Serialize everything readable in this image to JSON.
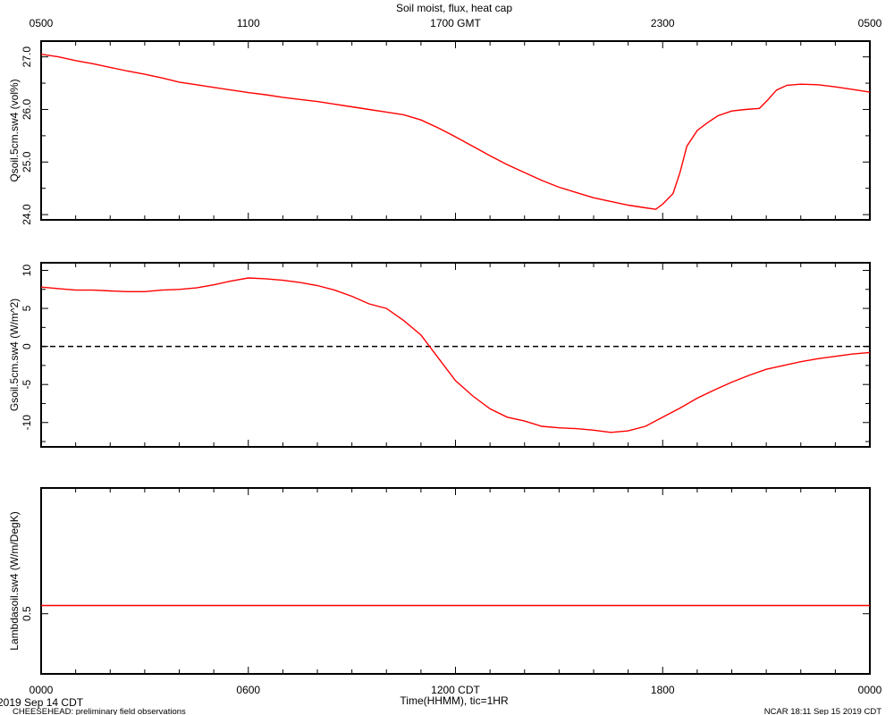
{
  "title": "Soil moist, flux, heat cap",
  "top_axis": {
    "ticks": [
      "0500",
      "1100",
      "1700 GMT",
      "2300",
      "0500"
    ]
  },
  "bottom_axis": {
    "ticks": [
      "0000",
      "0600",
      "1200 CDT",
      "1800",
      "0000"
    ],
    "title": "Time(HHMM), tic=1HR"
  },
  "footer": {
    "date": "2019 Sep 14 CDT",
    "project": "CHEESEHEAD: preliminary field observations",
    "credit": "NCAR 18:11 Sep 15 2019 CDT"
  },
  "colors": {
    "series": "#ff0000",
    "frame": "#000000",
    "zero_line": "#000000"
  },
  "chart_data": [
    {
      "type": "line",
      "ylabel": "Qsoil.5cm.sw4 (vol%)",
      "xlim": [
        0,
        24
      ],
      "ylim": [
        23.9,
        27.3
      ],
      "yticks": [
        24.0,
        25.0,
        26.0,
        27.0
      ],
      "ytick_labels": [
        "24.0",
        "25.0",
        "26.0",
        "27.0"
      ],
      "series": [
        {
          "x": [
            0,
            0.5,
            1,
            1.5,
            2,
            2.5,
            3,
            3.5,
            4,
            4.5,
            5,
            5.5,
            6,
            6.5,
            7,
            7.5,
            8,
            8.5,
            9,
            9.5,
            10,
            10.5,
            11,
            11.5,
            12,
            12.5,
            13,
            13.5,
            14,
            14.5,
            15,
            15.5,
            16,
            16.5,
            17,
            17.5,
            17.8,
            18,
            18.3,
            18.5,
            18.7,
            19,
            19.3,
            19.6,
            20,
            20.4,
            20.8,
            21,
            21.3,
            21.6,
            22,
            22.5,
            23,
            23.5,
            24
          ],
          "y": [
            27.05,
            27.0,
            26.93,
            26.87,
            26.8,
            26.73,
            26.67,
            26.6,
            26.52,
            26.47,
            26.42,
            26.37,
            26.32,
            26.28,
            26.23,
            26.19,
            26.15,
            26.1,
            26.05,
            26.0,
            25.95,
            25.9,
            25.8,
            25.65,
            25.48,
            25.3,
            25.12,
            24.95,
            24.8,
            24.65,
            24.52,
            24.42,
            24.32,
            24.25,
            24.18,
            24.13,
            24.1,
            24.2,
            24.4,
            24.8,
            25.3,
            25.6,
            25.75,
            25.88,
            25.97,
            26.0,
            26.02,
            26.15,
            26.37,
            26.46,
            26.48,
            26.47,
            26.43,
            26.38,
            26.33
          ]
        }
      ]
    },
    {
      "type": "line",
      "ylabel": "Gsoil.5cm.sw4 (W/m^2)",
      "xlim": [
        0,
        24
      ],
      "ylim": [
        -13.2,
        11
      ],
      "yticks": [
        -10,
        -5,
        0,
        5,
        10
      ],
      "ytick_labels": [
        "-10",
        "-5",
        "0",
        "5",
        "10"
      ],
      "zero_line": 0,
      "series": [
        {
          "x": [
            0,
            0.5,
            1,
            1.5,
            2,
            2.5,
            3,
            3.5,
            4,
            4.5,
            5,
            5.5,
            6,
            6.5,
            7,
            7.5,
            8,
            8.5,
            9,
            9.5,
            10,
            10.5,
            11,
            11.5,
            12,
            12.5,
            13,
            13.5,
            14,
            14.5,
            15,
            15.5,
            16,
            16.5,
            17,
            17.5,
            18,
            18.5,
            19,
            19.5,
            20,
            20.5,
            21,
            21.5,
            22,
            22.5,
            23,
            23.5,
            24
          ],
          "y": [
            7.8,
            7.6,
            7.4,
            7.4,
            7.3,
            7.2,
            7.2,
            7.4,
            7.5,
            7.7,
            8.1,
            8.6,
            9.0,
            8.9,
            8.7,
            8.4,
            8.0,
            7.4,
            6.6,
            5.6,
            5.0,
            3.4,
            1.5,
            -1.5,
            -4.5,
            -6.5,
            -8.2,
            -9.3,
            -9.8,
            -10.5,
            -10.7,
            -10.8,
            -11.0,
            -11.3,
            -11.1,
            -10.5,
            -9.3,
            -8.1,
            -6.8,
            -5.7,
            -4.7,
            -3.8,
            -3.0,
            -2.5,
            -2.0,
            -1.6,
            -1.3,
            -1.0,
            -0.8
          ]
        }
      ]
    },
    {
      "type": "line",
      "ylabel": "Lambdasoil.sw4 (W/m/DegK)",
      "xlim": [
        0,
        24
      ],
      "ylim": [
        0.28,
        0.96
      ],
      "yticks": [
        0.5
      ],
      "ytick_labels": [
        "0.5"
      ],
      "series": [
        {
          "x": [
            0,
            24
          ],
          "y": [
            0.53,
            0.53
          ]
        }
      ]
    }
  ]
}
